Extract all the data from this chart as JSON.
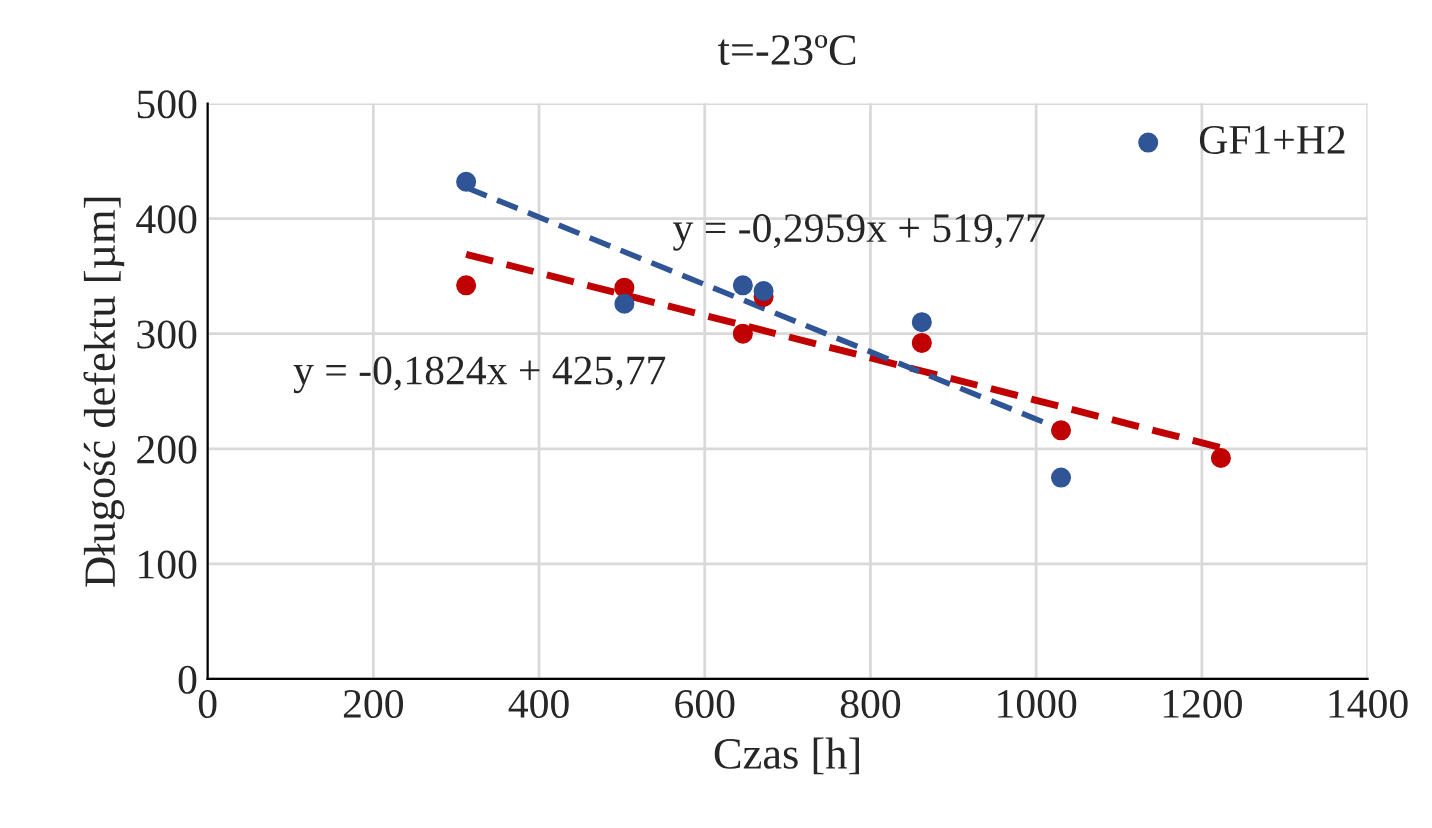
{
  "chart_data": {
    "type": "scatter",
    "title": "t=-23ºC",
    "xlabel": "Czas [h]",
    "ylabel": "Długość defektu [µm]",
    "xlim": [
      0,
      1400
    ],
    "xticks": [
      0,
      200,
      400,
      600,
      800,
      1000,
      1200,
      1400
    ],
    "ylim": [
      0,
      500
    ],
    "yticks": [
      0,
      100,
      200,
      300,
      400,
      500
    ],
    "grid": true,
    "legend": "top right",
    "series": [
      {
        "marker": "circle",
        "color": "#c00000",
        "x": [
          312,
          503,
          646,
          671,
          862,
          1030,
          1223
        ],
        "values": [
          342,
          340,
          300,
          332,
          292,
          216,
          192
        ]
      },
      {
        "name": "GF1+H2",
        "marker": "circle",
        "color": "#2f5597",
        "x": [
          312,
          503,
          646,
          671,
          862,
          1030
        ],
        "values": [
          432,
          326,
          342,
          337,
          310,
          175
        ]
      },
      {
        "type": "line",
        "line_style": "dashed",
        "color": "#c00000",
        "x": [
          312,
          1223
        ],
        "values": [
          369,
          201
        ]
      },
      {
        "type": "line",
        "line_style": "dashed",
        "color": "#2f5597",
        "x": [
          312,
          1030
        ],
        "values": [
          427,
          217
        ]
      }
    ],
    "annotations": [
      "y = -0,2959x + 519,77",
      "y = -0,1824x + 425,77"
    ]
  }
}
